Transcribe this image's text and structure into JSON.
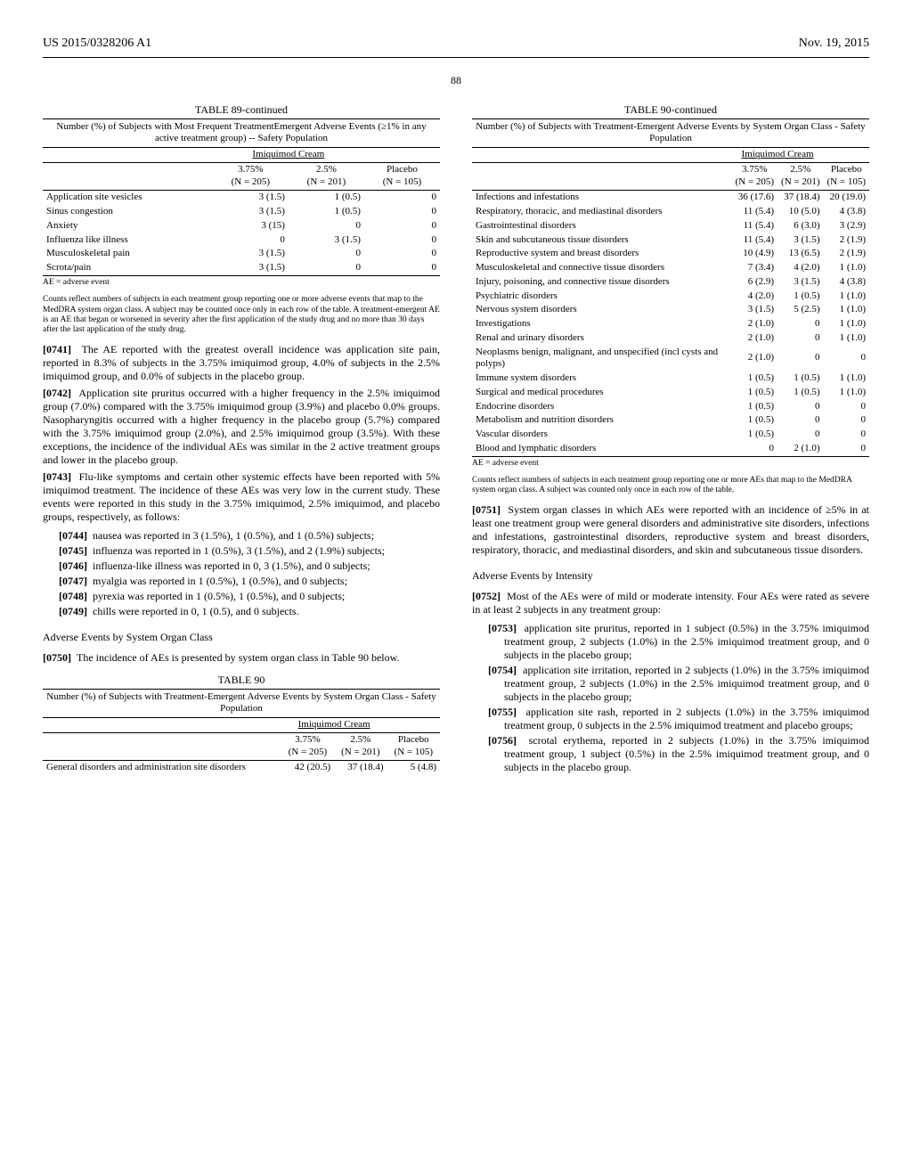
{
  "header": {
    "left": "US 2015/0328206 A1",
    "right": "Nov. 19, 2015"
  },
  "page_number": "88",
  "table89": {
    "title": "TABLE 89-continued",
    "caption": "Number (%) of Subjects with Most Frequent TreatmentEmergent Adverse Events (≥1% in any active treatment group) -- Safety Population",
    "group_header": "Imiquimod Cream",
    "cols": {
      "c1": "3.75%\n(N = 205)",
      "c2": "2.5%\n(N = 201)",
      "c3": "Placebo\n(N = 105)"
    },
    "rows": [
      {
        "label": "Application site vesicles",
        "c1": "3 (1.5)",
        "c2": "1 (0.5)",
        "c3": "0"
      },
      {
        "label": "Sinus congestion",
        "c1": "3 (1.5)",
        "c2": "1 (0.5)",
        "c3": "0"
      },
      {
        "label": "Anxiety",
        "c1": "3 (15)",
        "c2": "0",
        "c3": "0"
      },
      {
        "label": "Influenza like illness",
        "c1": "0",
        "c2": "3 (1.5)",
        "c3": "0"
      },
      {
        "label": "Musculoskeletal pain",
        "c1": "3 (1.5)",
        "c2": "0",
        "c3": "0"
      },
      {
        "label": "Scrota/pain",
        "c1": "3 (1.5)",
        "c2": "0",
        "c3": "0"
      }
    ],
    "footnote1": "AE = adverse event",
    "footnote2": "Counts reflect numbers of subjects in each treatment group reporting one or more adverse events that map to the MedDRA system organ class. A subject may be counted once only in each row of the table. A treatment-emergent AE is an AE that began or worsened in severity after the first application of the study drug and no more than 30 days after the last application of the study drug."
  },
  "p0741": {
    "num": "[0741]",
    "text": "The AE reported with the greatest overall incidence was application site pain, reported in 8.3% of subjects in the 3.75% imiquimod group, 4.0% of subjects in the 2.5% imiquimod group, and 0.0% of subjects in the placebo group."
  },
  "p0742": {
    "num": "[0742]",
    "text": "Application site pruritus occurred with a higher frequency in the 2.5% imiquimod group (7.0%) compared with the 3.75% imiquimod group (3.9%) and placebo 0.0% groups. Nasopharyngitis occurred with a higher frequency in the placebo group (5.7%) compared with the 3.75% imiquimod group (2.0%), and 2.5% imiquimod group (3.5%). With these exceptions, the incidence of the individual AEs was similar in the 2 active treatment groups and lower in the placebo group."
  },
  "p0743": {
    "num": "[0743]",
    "text": "Flu-like symptoms and certain other systemic effects have been reported with 5% imiquimod treatment. The incidence of these AEs was very low in the current study. These events were reported in this study in the 3.75% imiquimod, 2.5% imiquimod, and placebo groups, respectively, as follows:"
  },
  "bullets_left": [
    {
      "num": "[0744]",
      "text": "nausea was reported in 3 (1.5%), 1 (0.5%), and 1 (0.5%) subjects;"
    },
    {
      "num": "[0745]",
      "text": "influenza was reported in 1 (0.5%), 3 (1.5%), and 2 (1.9%) subjects;"
    },
    {
      "num": "[0746]",
      "text": "influenza-like illness was reported in 0, 3 (1.5%), and 0 subjects;"
    },
    {
      "num": "[0747]",
      "text": "myalgia was reported in 1 (0.5%), 1 (0.5%), and 0 subjects;"
    },
    {
      "num": "[0748]",
      "text": "pyrexia was reported in 1 (0.5%), 1 (0.5%), and 0 subjects;"
    },
    {
      "num": "[0749]",
      "text": "chills were reported in 0, 1 (0.5), and 0 subjects."
    }
  ],
  "sec_left": "Adverse Events by System Organ Class",
  "p0750": {
    "num": "[0750]",
    "text": "The incidence of AEs is presented by system organ class in Table 90 below."
  },
  "table90a": {
    "title": "TABLE 90",
    "caption": "Number (%) of Subjects with Treatment-Emergent Adverse Events by System Organ Class - Safety Population",
    "group_header": "Imiquimod Cream",
    "cols": {
      "c1": "3.75%\n(N = 205)",
      "c2": "2.5%\n(N = 201)",
      "c3": "Placebo\n(N = 105)"
    },
    "rows": [
      {
        "label": "General disorders and administration site disorders",
        "c1": "42 (20.5)",
        "c2": "37 (18.4)",
        "c3": "5 (4.8)"
      }
    ]
  },
  "table90b": {
    "title": "TABLE 90-continued",
    "caption": "Number (%) of Subjects with Treatment-Emergent Adverse Events by System Organ Class - Safety Population",
    "group_header": "Imiquimod Cream",
    "cols": {
      "c1": "3.75%\n(N = 205)",
      "c2": "2.5%\n(N = 201)",
      "c3": "Placebo\n(N = 105)"
    },
    "rows": [
      {
        "label": "Infections and infestations",
        "c1": "36 (17.6)",
        "c2": "37 (18.4)",
        "c3": "20 (19.0)"
      },
      {
        "label": "Respiratory, thoracic, and mediastinal disorders",
        "c1": "11 (5.4)",
        "c2": "10 (5.0)",
        "c3": "4 (3.8)"
      },
      {
        "label": "Gastrointestinal disorders",
        "c1": "11 (5.4)",
        "c2": "6 (3.0)",
        "c3": "3 (2.9)"
      },
      {
        "label": "Skin and subcutaneous tissue disorders",
        "c1": "11 (5.4)",
        "c2": "3 (1.5)",
        "c3": "2 (1.9)"
      },
      {
        "label": "Reproductive system and breast disorders",
        "c1": "10 (4.9)",
        "c2": "13 (6.5)",
        "c3": "2 (1.9)"
      },
      {
        "label": "Musculoskeletal and connective tissue disorders",
        "c1": "7 (3.4)",
        "c2": "4 (2.0)",
        "c3": "1 (1.0)"
      },
      {
        "label": "Injury, poisoning, and connective tissue disorders",
        "c1": "6 (2.9)",
        "c2": "3 (1.5)",
        "c3": "4 (3.8)"
      },
      {
        "label": "Psychiatric disorders",
        "c1": "4 (2.0)",
        "c2": "1 (0.5)",
        "c3": "1 (1.0)"
      },
      {
        "label": "Nervous system disorders",
        "c1": "3 (1.5)",
        "c2": "5 (2.5)",
        "c3": "1 (1.0)"
      },
      {
        "label": "Investigations",
        "c1": "2 (1.0)",
        "c2": "0",
        "c3": "1 (1.0)"
      },
      {
        "label": "Renal and urinary disorders",
        "c1": "2 (1.0)",
        "c2": "0",
        "c3": "1 (1.0)"
      },
      {
        "label": "Neoplasms benign, malignant, and unspecified (incl cysts and polyps)",
        "c1": "2 (1.0)",
        "c2": "0",
        "c3": "0"
      },
      {
        "label": "Immune system disorders",
        "c1": "1 (0.5)",
        "c2": "1 (0.5)",
        "c3": "1 (1.0)"
      },
      {
        "label": "Surgical and medical procedures",
        "c1": "1 (0.5)",
        "c2": "1 (0.5)",
        "c3": "1 (1.0)"
      },
      {
        "label": "Endocrine disorders",
        "c1": "1 (0.5)",
        "c2": "0",
        "c3": "0"
      },
      {
        "label": "Metabolism and nutrition disorders",
        "c1": "1 (0.5)",
        "c2": "0",
        "c3": "0"
      },
      {
        "label": "Vascular disorders",
        "c1": "1 (0.5)",
        "c2": "0",
        "c3": "0"
      },
      {
        "label": "Blood and lymphatic disorders",
        "c1": "0",
        "c2": "2 (1.0)",
        "c3": "0"
      }
    ],
    "footnote1": "AE = adverse event",
    "footnote2": "Counts reflect numbers of subjects in each treatment group reporting one or more AEs that map to the MedDRA system organ class. A subject was counted only once in each row of the table."
  },
  "p0751": {
    "num": "[0751]",
    "text": "System organ classes in which AEs were reported with an incidence of ≥5% in at least one treatment group were general disorders and administrative site disorders, infections and infestations, gastrointestinal disorders, reproductive system and breast disorders, respiratory, thoracic, and mediastinal disorders, and skin and subcutaneous tissue disorders."
  },
  "sec_right": "Adverse Events by Intensity",
  "p0752": {
    "num": "[0752]",
    "text": "Most of the AEs were of mild or moderate intensity. Four AEs were rated as severe in at least 2 subjects in any treatment group:"
  },
  "bullets_right": [
    {
      "num": "[0753]",
      "text": "application site pruritus, reported in 1 subject (0.5%) in the 3.75% imiquimod treatment group, 2 subjects (1.0%) in the 2.5% imiquimod treatment group, and 0 subjects in the placebo group;"
    },
    {
      "num": "[0754]",
      "text": "application site irritation, reported in 2 subjects (1.0%) in the 3.75% imiquimod treatment group, 2 subjects (1.0%) in the 2.5% imiquimod treatment group, and 0 subjects in the placebo group;"
    },
    {
      "num": "[0755]",
      "text": "application site rash, reported in 2 subjects (1.0%) in the 3.75% imiquimod treatment group, 0 subjects in the 2.5% imiquimod treatment and placebo groups;"
    },
    {
      "num": "[0756]",
      "text": "scrotal erythema, reported in 2 subjects (1.0%) in the 3.75% imiquimod treatment group, 1 subject (0.5%) in the 2.5% imiquimod treatment group, and 0 subjects in the placebo group."
    }
  ]
}
